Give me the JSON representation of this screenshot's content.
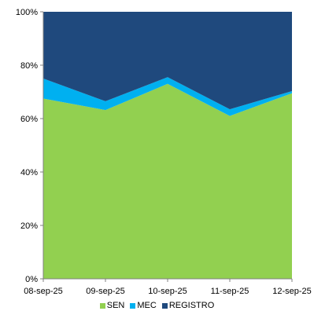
{
  "chart_data": {
    "type": "area",
    "stacked": true,
    "percent": true,
    "categories": [
      "08-sep-25",
      "09-sep-25",
      "10-sep-25",
      "11-sep-25",
      "12-sep-25"
    ],
    "series": [
      {
        "name": "SEN",
        "color": "#92d050",
        "values": [
          67.5,
          63.2,
          73.0,
          61.0,
          69.5
        ]
      },
      {
        "name": "MEC",
        "color": "#00b0f0",
        "values": [
          7.5,
          3.3,
          2.5,
          2.5,
          0.8
        ]
      },
      {
        "name": "REGISTRO",
        "color": "#1f497d",
        "values": [
          25.0,
          33.5,
          24.5,
          36.5,
          29.7
        ]
      }
    ],
    "y_ticks": [
      "0%",
      "20%",
      "40%",
      "60%",
      "80%",
      "100%"
    ],
    "ylim": [
      0,
      100
    ],
    "grid": false,
    "legend_position": "bottom"
  }
}
